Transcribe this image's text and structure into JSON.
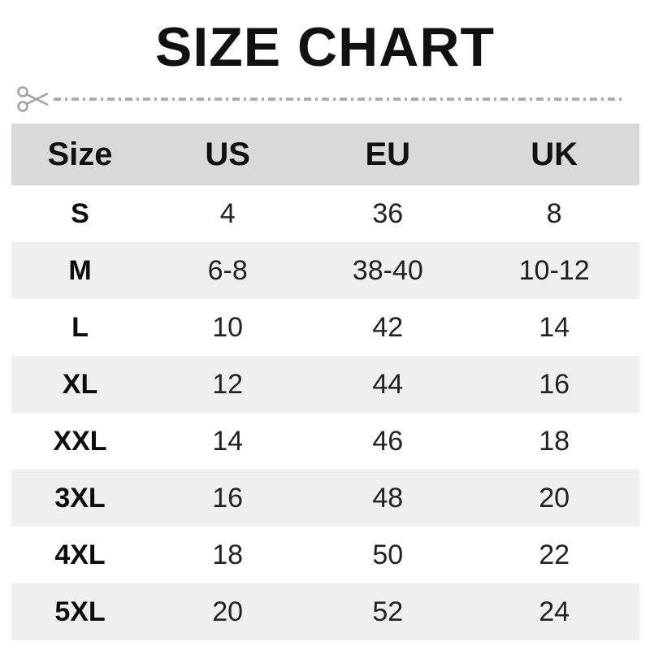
{
  "page": {
    "title": "SIZE CHART"
  },
  "divider": {
    "icon": "scissors",
    "line_style": "dash-dot",
    "color": "#adadad"
  },
  "colors": {
    "header_bg": "#d9d9d9",
    "alt_row_bg": "#efefef",
    "title_text": "#111111",
    "body_text": "#222222"
  },
  "chart_data": {
    "type": "table",
    "title": "SIZE CHART",
    "columns": [
      "Size",
      "US",
      "EU",
      "UK"
    ],
    "rows": [
      [
        "S",
        "4",
        "36",
        "8"
      ],
      [
        "M",
        "6-8",
        "38-40",
        "10-12"
      ],
      [
        "L",
        "10",
        "42",
        "14"
      ],
      [
        "XL",
        "12",
        "44",
        "16"
      ],
      [
        "XXL",
        "14",
        "46",
        "18"
      ],
      [
        "3XL",
        "16",
        "48",
        "20"
      ],
      [
        "4XL",
        "18",
        "50",
        "22"
      ],
      [
        "5XL",
        "20",
        "52",
        "24"
      ]
    ]
  }
}
